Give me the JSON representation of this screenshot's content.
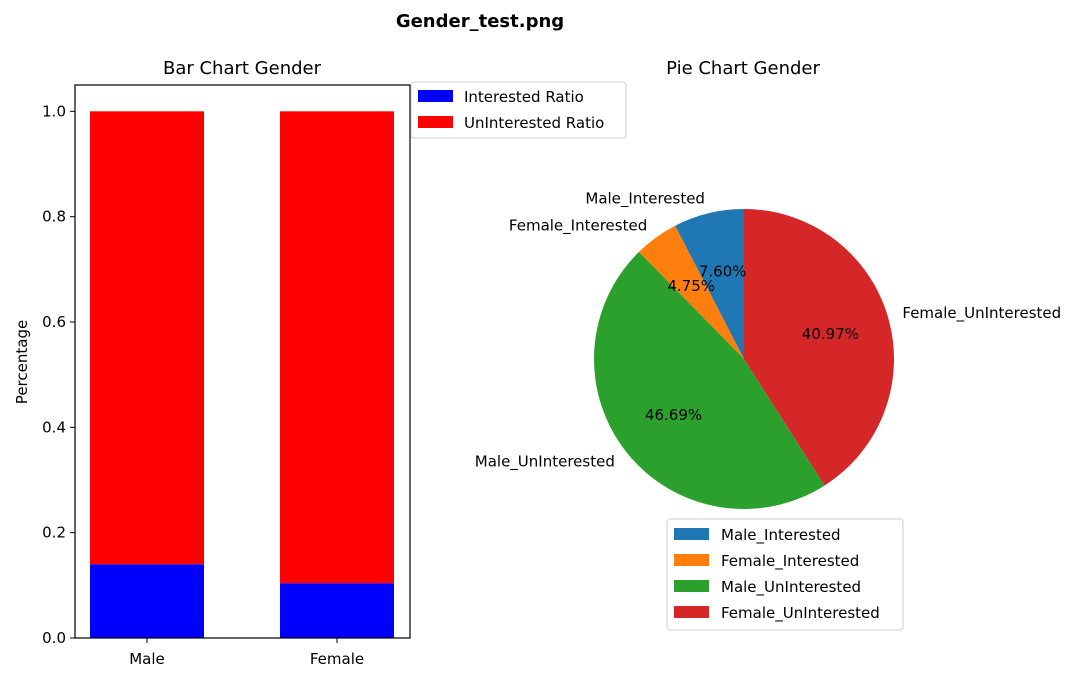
{
  "figure": {
    "title": "Gender_test.png"
  },
  "chart_data": [
    {
      "type": "bar",
      "stacked": true,
      "title": "Bar Chart Gender",
      "xlabel": "",
      "ylabel": "Percentage",
      "categories": [
        "Male",
        "Female"
      ],
      "series": [
        {
          "name": "Interested Ratio",
          "color": "#0000ff",
          "values": [
            0.14,
            0.104
          ]
        },
        {
          "name": "UnInterested Ratio",
          "color": "#ff0000",
          "values": [
            0.86,
            0.896
          ]
        }
      ],
      "ylim": [
        0,
        1.05
      ],
      "yticks": [
        "0.0",
        "0.2",
        "0.4",
        "0.6",
        "0.8",
        "1.0"
      ],
      "legend": {
        "placement": "upper-right outside",
        "entries": [
          "Interested Ratio",
          "UnInterested Ratio"
        ]
      },
      "grid": false
    },
    {
      "type": "pie",
      "title": "Pie Chart Gender",
      "slices": [
        {
          "label": "Male_Interested",
          "value": 7.6,
          "pct_label": "7.60%",
          "color": "#1f77b4"
        },
        {
          "label": "Female_Interested",
          "value": 4.75,
          "pct_label": "4.75%",
          "color": "#ff7f0e"
        },
        {
          "label": "Male_UnInterested",
          "value": 46.69,
          "pct_label": "46.69%",
          "color": "#2ca02c"
        },
        {
          "label": "Female_UnInterested",
          "value": 40.97,
          "pct_label": "40.97%",
          "color": "#d62728"
        }
      ],
      "start_angle_deg": 90,
      "direction": "counterclockwise",
      "legend": {
        "placement": "lower-center",
        "entries": [
          "Male_Interested",
          "Female_Interested",
          "Male_UnInterested",
          "Female_UnInterested"
        ]
      }
    }
  ]
}
